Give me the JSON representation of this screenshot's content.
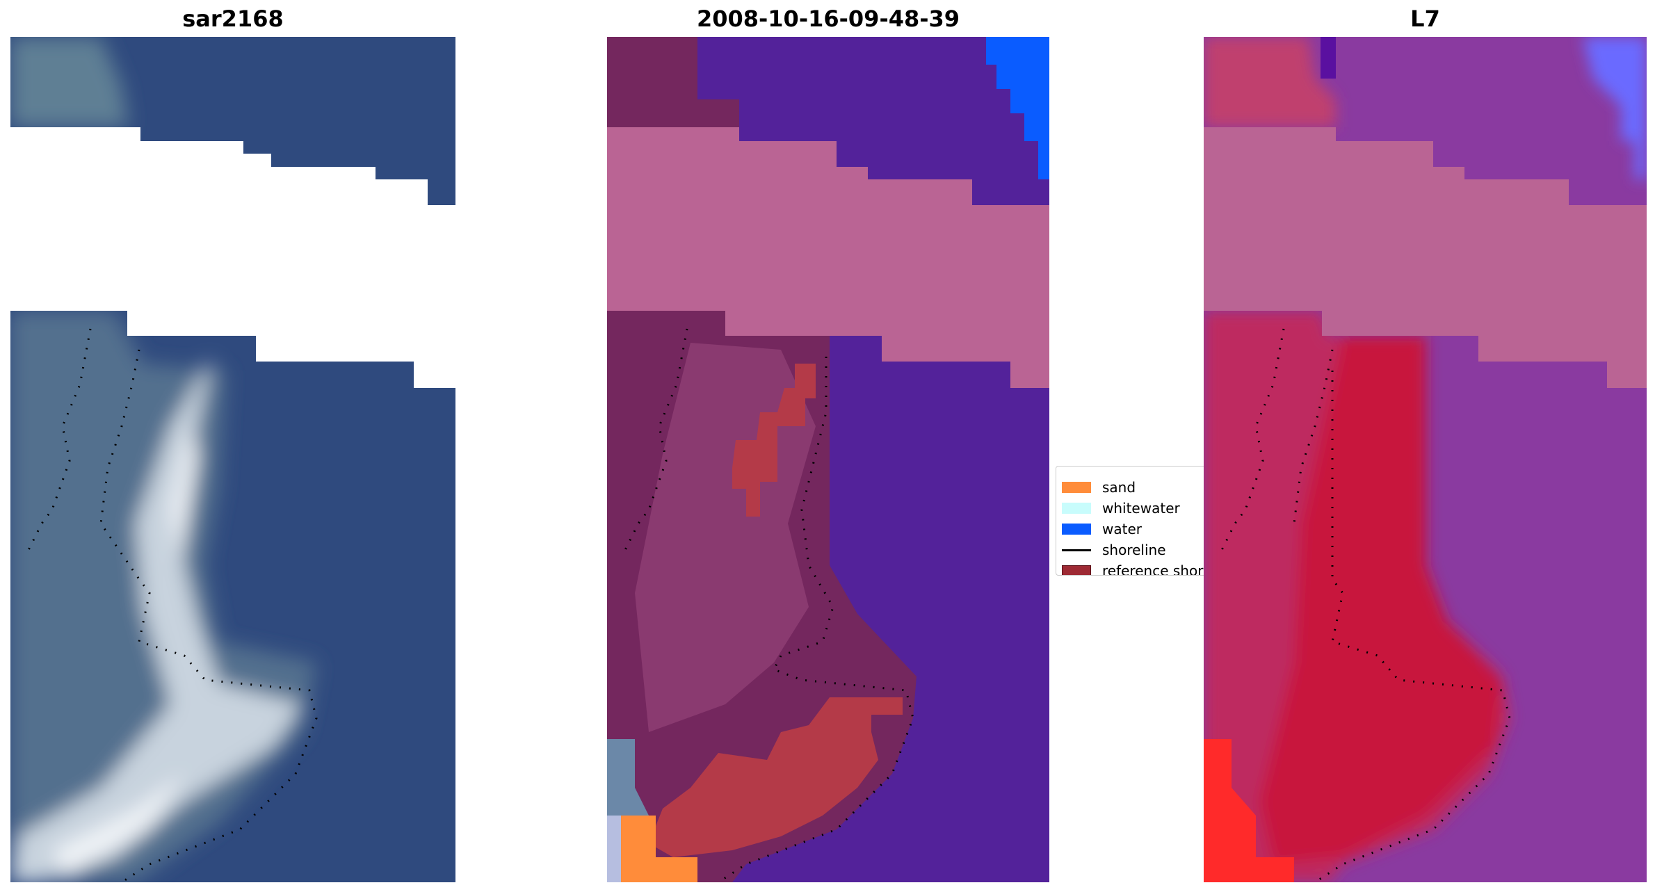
{
  "panels": [
    {
      "title": "sar2168"
    },
    {
      "title": "2008-10-16-09-48-39"
    },
    {
      "title": "L7"
    }
  ],
  "legend": {
    "entries": [
      {
        "label": "sand",
        "color": "#ff8c3a",
        "kind": "patch"
      },
      {
        "label": "whitewater",
        "color": "#c8fcfc",
        "kind": "patch"
      },
      {
        "label": "water",
        "color": "#0a5cff",
        "kind": "patch"
      },
      {
        "label": "shoreline",
        "color": "#000000",
        "kind": "line"
      },
      {
        "label": "reference shoreline buffer",
        "color": "#9e2a34",
        "kind": "patch"
      }
    ]
  },
  "colors": {
    "rgb_water": "#2f4a7e",
    "rgb_land": "#53708e",
    "rgb_bright": "#c8d3de",
    "class_water": "#53229a",
    "class_land": "#74275e",
    "class_buffer": "#ba6494",
    "class_red": "#b43a48",
    "class_blue": "#0a5cff",
    "class_sand": "#ff8c3a",
    "l7_water": "#8a3aa0",
    "l7_land": "#be2a60",
    "l7_strong": "#c8123c",
    "l7_edge": "#ff2a2a",
    "l7_blue": "#6a6aff",
    "shoreline": "#000000"
  }
}
